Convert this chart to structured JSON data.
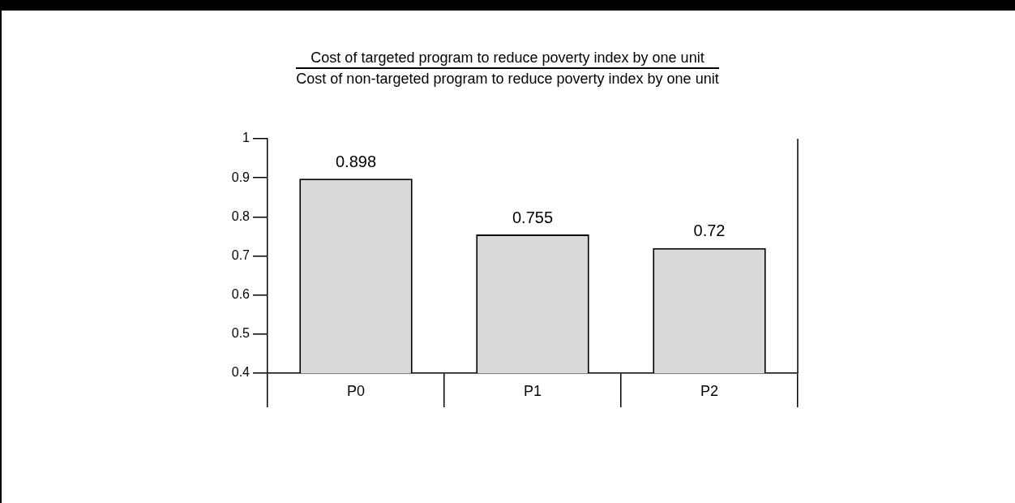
{
  "chart_data": {
    "type": "bar",
    "title": "Cost of targeted program to reduce poverty index by one unit",
    "subtitle": "Cost of non-targeted program to reduce poverty index by one unit",
    "categories": [
      "P0",
      "P1",
      "P2"
    ],
    "values": [
      0.898,
      0.755,
      0.72
    ],
    "color": "#d9d9d9",
    "ylim": [
      0.4,
      1
    ],
    "yticks": [
      0.4,
      0.5,
      0.6,
      0.7,
      0.8,
      0.9,
      1
    ],
    "data_labels": true
  }
}
